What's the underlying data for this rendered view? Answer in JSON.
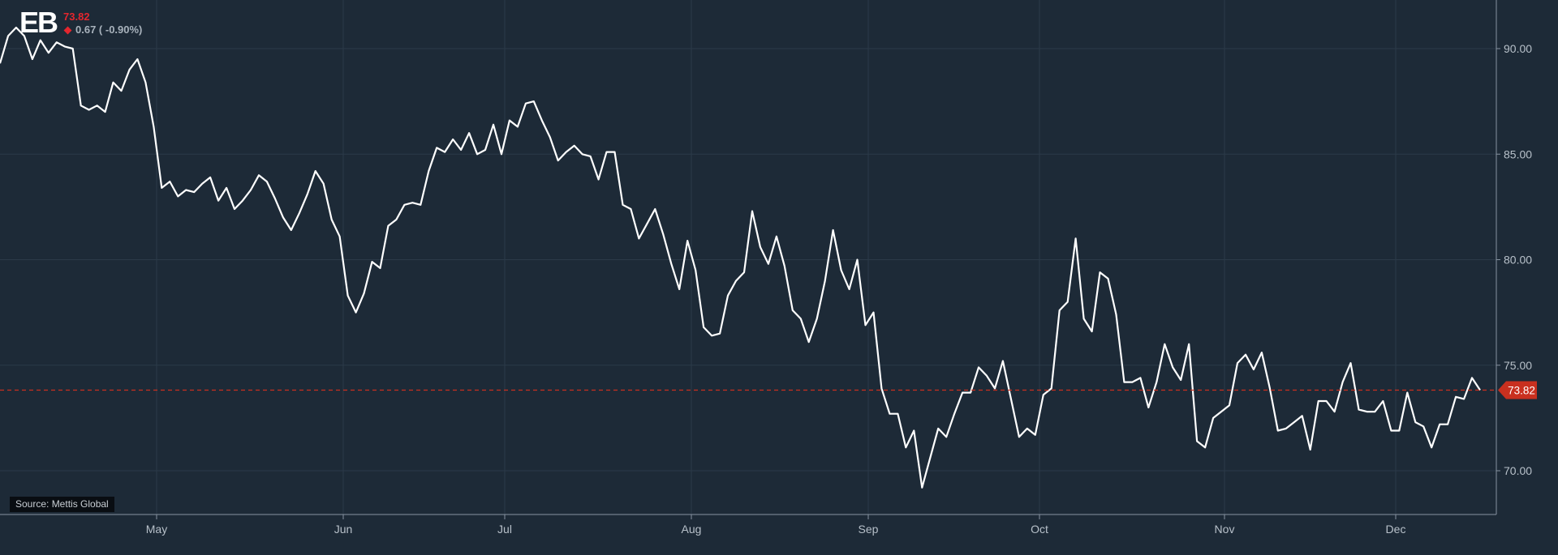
{
  "header": {
    "symbol": "EB",
    "last_price": "73.82",
    "change": "0.67 ( -0.90%)",
    "direction": "down"
  },
  "source_label": "Source: Mettis Global",
  "colors": {
    "background": "#1d2a37",
    "grid": "#2b3a48",
    "line": "#ffffff",
    "last_price_marker": "#c9301f",
    "negative": "#e4262e"
  },
  "chart_data": {
    "type": "line",
    "title": "",
    "xlabel": "",
    "ylabel": "",
    "x_ticks": [
      "May",
      "Jun",
      "Jul",
      "Aug",
      "Sep",
      "Oct",
      "Nov",
      "Dec"
    ],
    "y_ticks": [
      "70.00",
      "75.00",
      "80.00",
      "85.00",
      "90.00"
    ],
    "ylim": [
      68.0,
      92.5
    ],
    "grid": true,
    "y_axis_side": "right",
    "last_value": 73.82,
    "last_value_label": "73.82",
    "series": [
      {
        "values": [
          89.3,
          90.6,
          91.0,
          90.6,
          89.5,
          90.4,
          89.8,
          90.3,
          90.1,
          90.0,
          87.3,
          87.1,
          87.3,
          87.0,
          88.4,
          88.0,
          89.0,
          89.5,
          88.4,
          86.3,
          83.4,
          83.7,
          83.0,
          83.3,
          83.2,
          83.6,
          83.9,
          82.8,
          83.4,
          82.4,
          82.8,
          83.3,
          84.0,
          83.7,
          82.9,
          82.0,
          81.4,
          82.2,
          83.1,
          84.2,
          83.6,
          81.9,
          81.1,
          78.3,
          77.5,
          78.4,
          79.9,
          79.6,
          81.6,
          81.9,
          82.6,
          82.7,
          82.6,
          84.2,
          85.3,
          85.1,
          85.7,
          85.2,
          86.0,
          85.0,
          85.2,
          86.4,
          85.0,
          86.6,
          86.3,
          87.4,
          87.5,
          86.6,
          85.8,
          84.7,
          85.1,
          85.4,
          85.0,
          84.9,
          83.8,
          85.1,
          85.1,
          82.6,
          82.4,
          81.0,
          81.7,
          82.4,
          81.2,
          79.8,
          78.6,
          80.9,
          79.5,
          76.8,
          76.4,
          76.5,
          78.3,
          79.0,
          79.4,
          82.3,
          80.6,
          79.8,
          81.1,
          79.7,
          77.6,
          77.2,
          76.1,
          77.2,
          79.0,
          81.4,
          79.5,
          78.6,
          80.0,
          76.9,
          77.5,
          73.9,
          72.7,
          72.7,
          71.1,
          71.9,
          69.2,
          70.6,
          72.0,
          71.6,
          72.7,
          73.7,
          73.7,
          74.9,
          74.5,
          73.9,
          75.2,
          73.4,
          71.6,
          72.0,
          71.7,
          73.6,
          73.9,
          77.6,
          78.0,
          81.0,
          77.2,
          76.6,
          79.4,
          79.1,
          77.4,
          74.2,
          74.2,
          74.4,
          73.0,
          74.2,
          76.0,
          74.9,
          74.3,
          76.0,
          71.4,
          71.1,
          72.5,
          72.8,
          73.1,
          75.1,
          75.5,
          74.8,
          75.6,
          73.9,
          71.9,
          72.0,
          72.3,
          72.6,
          71.0,
          73.3,
          73.3,
          72.8,
          74.2,
          75.1,
          72.9,
          72.8,
          72.8,
          73.3,
          71.9,
          71.9,
          73.7,
          72.3,
          72.1,
          71.1,
          72.2,
          72.2,
          73.5,
          73.4,
          74.4,
          73.82
        ]
      }
    ]
  }
}
